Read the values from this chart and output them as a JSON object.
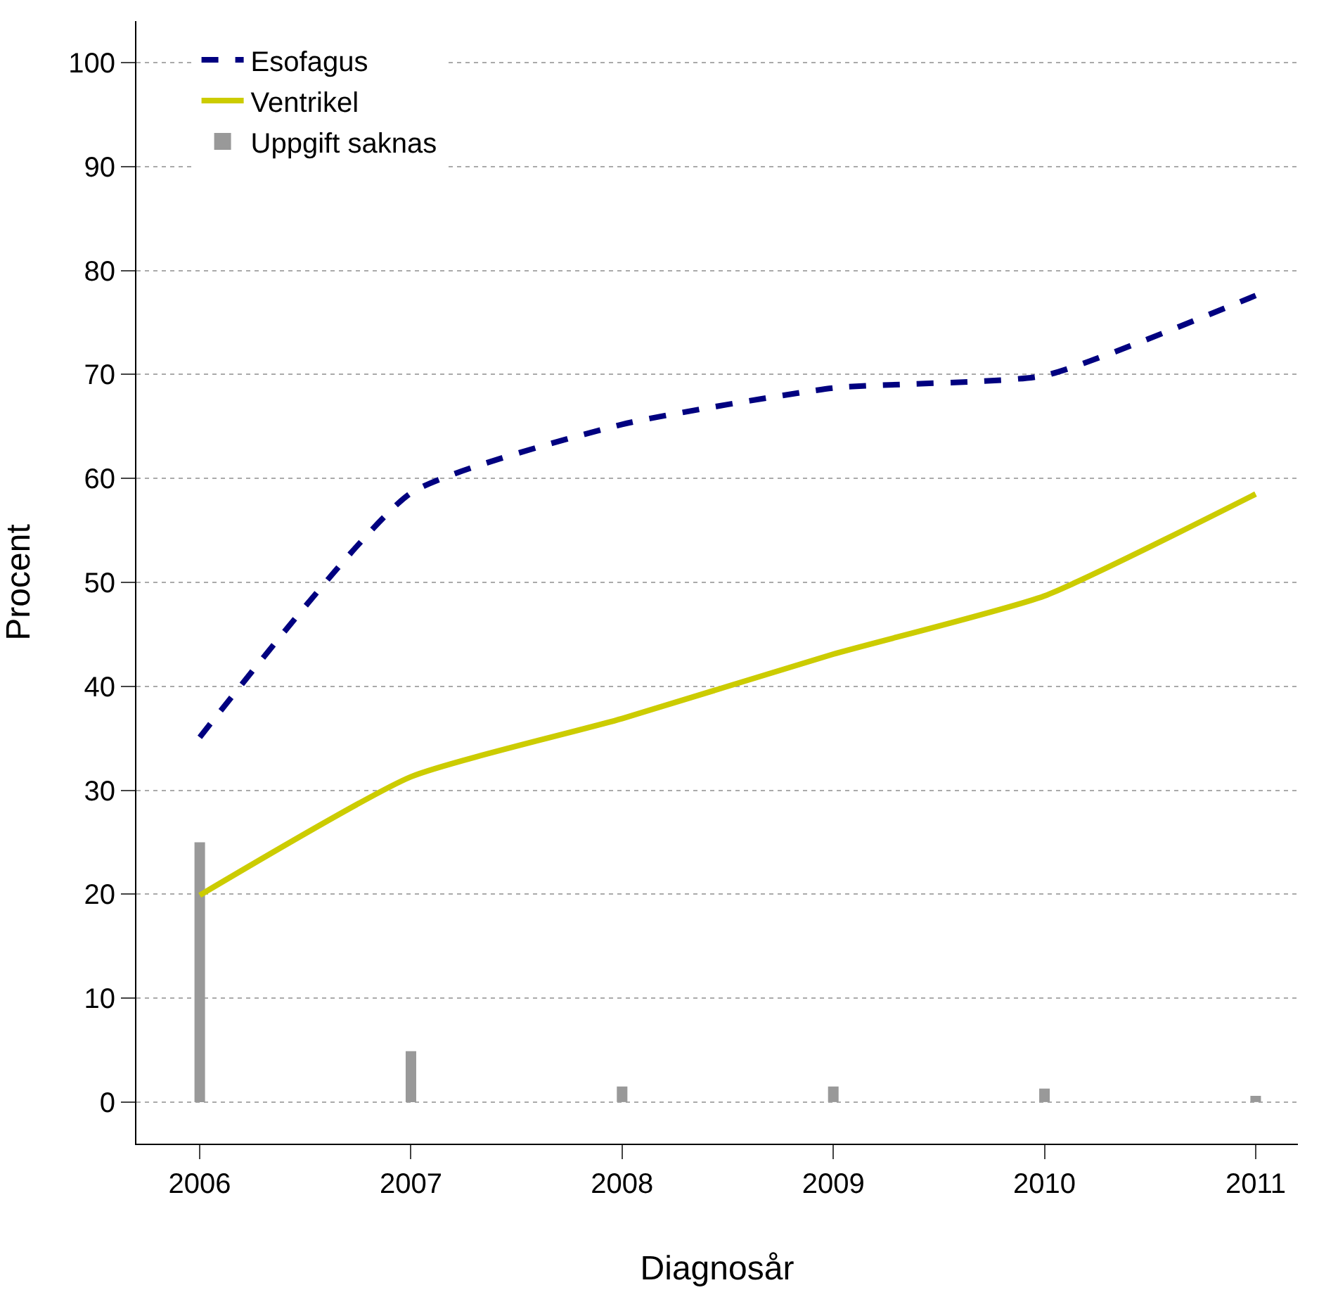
{
  "chart_data": {
    "type": "line",
    "xlabel": "Diagnosår",
    "ylabel": "Procent",
    "x": [
      2006,
      2007,
      2008,
      2009,
      2010,
      2011
    ],
    "xlim": [
      2005.7,
      2011.2
    ],
    "xticks": [
      2006,
      2007,
      2008,
      2009,
      2010,
      2011
    ],
    "ylim": [
      -4,
      104
    ],
    "yticks": [
      0,
      10,
      20,
      30,
      40,
      50,
      60,
      70,
      80,
      90,
      100
    ],
    "grid": "y",
    "legend": "top left",
    "series": [
      {
        "name": "Esofagus",
        "color": "#000080",
        "line_style": "dashed",
        "values": [
          35.1,
          58.6,
          65.2,
          68.7,
          69.9,
          77.6
        ]
      },
      {
        "name": "Ventrikel",
        "color": "#cccc00",
        "line_style": "solid",
        "values": [
          19.9,
          31.3,
          36.9,
          43.1,
          48.7,
          58.5
        ]
      },
      {
        "name": "Uppgift saknas",
        "type": "bar",
        "color": "#999999",
        "values": [
          25.0,
          4.9,
          1.5,
          1.5,
          1.3,
          0.6
        ]
      }
    ]
  }
}
